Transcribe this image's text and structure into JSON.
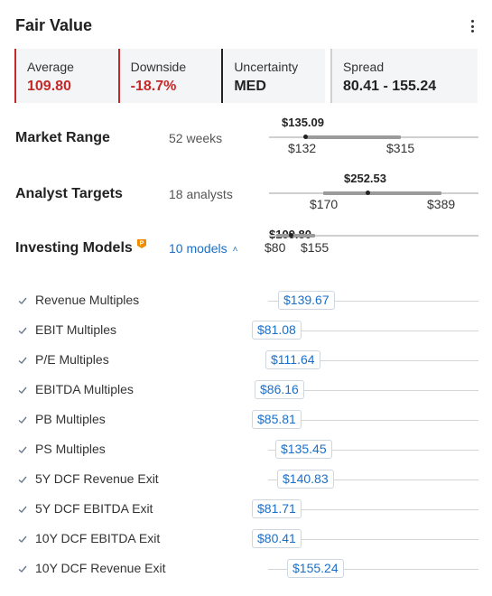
{
  "header": {
    "title": "Fair Value",
    "menu_icon": "more-vertical-icon"
  },
  "metrics": [
    {
      "label": "Average",
      "value": "109.80",
      "accent": "#c62828",
      "value_color": "#c62828"
    },
    {
      "label": "Downside",
      "value": "-18.7%",
      "accent": "#c62828",
      "value_color": "#c62828"
    },
    {
      "label": "Uncertainty",
      "value": "MED",
      "accent": "#222222",
      "value_color": "#222222"
    },
    {
      "label": "Spread",
      "value": "80.41 - 155.24",
      "accent": "#d0d0d0",
      "value_color": "#222222"
    }
  ],
  "market_range": {
    "label": "Market Range",
    "sub": "52 weeks",
    "current": "$135.09",
    "low": "$132",
    "high": "$315"
  },
  "analyst_targets": {
    "label": "Analyst Targets",
    "sub": "18 analysts",
    "current": "$252.53",
    "low": "$170",
    "high": "$389"
  },
  "investing_models": {
    "label": "Investing Models",
    "badge_icon": "pro-badge-icon",
    "link": "10 models",
    "link_icon": "chevron-up-icon",
    "current": "$109.80",
    "low": "$80",
    "high": "$155"
  },
  "models": [
    {
      "name": "Revenue Multiples",
      "value": "$139.67",
      "checked": true
    },
    {
      "name": "EBIT Multiples",
      "value": "$81.08",
      "checked": true
    },
    {
      "name": "P/E Multiples",
      "value": "$111.64",
      "checked": true
    },
    {
      "name": "EBITDA Multiples",
      "value": "$86.16",
      "checked": true
    },
    {
      "name": "PB Multiples",
      "value": "$85.81",
      "checked": true
    },
    {
      "name": "PS Multiples",
      "value": "$135.45",
      "checked": true
    },
    {
      "name": "5Y DCF Revenue Exit",
      "value": "$140.83",
      "checked": true
    },
    {
      "name": "5Y DCF EBITDA Exit",
      "value": "$81.71",
      "checked": true
    },
    {
      "name": "10Y DCF EBITDA Exit",
      "value": "$80.41",
      "checked": true
    },
    {
      "name": "10Y DCF Revenue Exit",
      "value": "$155.24",
      "checked": true
    }
  ],
  "colors": {
    "link": "#1a6fc9",
    "negative": "#c62828",
    "badge": "#f08c00"
  }
}
